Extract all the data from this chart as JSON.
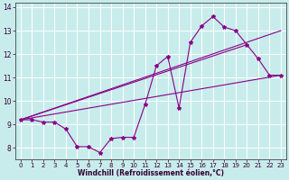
{
  "title": "",
  "xlabel": "Windchill (Refroidissement éolien,°C)",
  "ylabel": "",
  "bg_color": "#c8ecec",
  "line_color": "#880088",
  "grid_color": "#ffffff",
  "xlim": [
    -0.5,
    23.5
  ],
  "ylim": [
    7.5,
    14.2
  ],
  "xticks": [
    0,
    1,
    2,
    3,
    4,
    5,
    6,
    7,
    8,
    9,
    10,
    11,
    12,
    13,
    14,
    15,
    16,
    17,
    18,
    19,
    20,
    21,
    22,
    23
  ],
  "yticks": [
    8,
    9,
    10,
    11,
    12,
    13,
    14
  ],
  "series1_x": [
    0,
    1,
    2,
    3,
    4,
    5,
    6,
    7,
    8,
    9,
    10,
    11,
    12,
    13,
    14,
    15,
    16,
    17,
    18,
    19,
    20,
    21,
    22,
    23
  ],
  "series1_y": [
    9.2,
    9.2,
    9.1,
    9.1,
    8.8,
    8.05,
    8.05,
    7.8,
    8.4,
    8.45,
    8.45,
    9.85,
    11.5,
    11.9,
    9.7,
    12.5,
    13.2,
    13.6,
    13.15,
    13.0,
    12.4,
    11.8,
    11.1,
    11.1
  ],
  "series2_x": [
    0,
    23
  ],
  "series2_y": [
    9.2,
    13.0
  ],
  "series3_x": [
    0,
    23
  ],
  "series3_y": [
    9.2,
    11.1
  ],
  "series4_x": [
    0,
    20
  ],
  "series4_y": [
    9.2,
    12.4
  ],
  "marker": "*",
  "markersize": 3,
  "linewidth": 0.8,
  "tick_fontsize": 5.0,
  "xlabel_fontsize": 5.5
}
